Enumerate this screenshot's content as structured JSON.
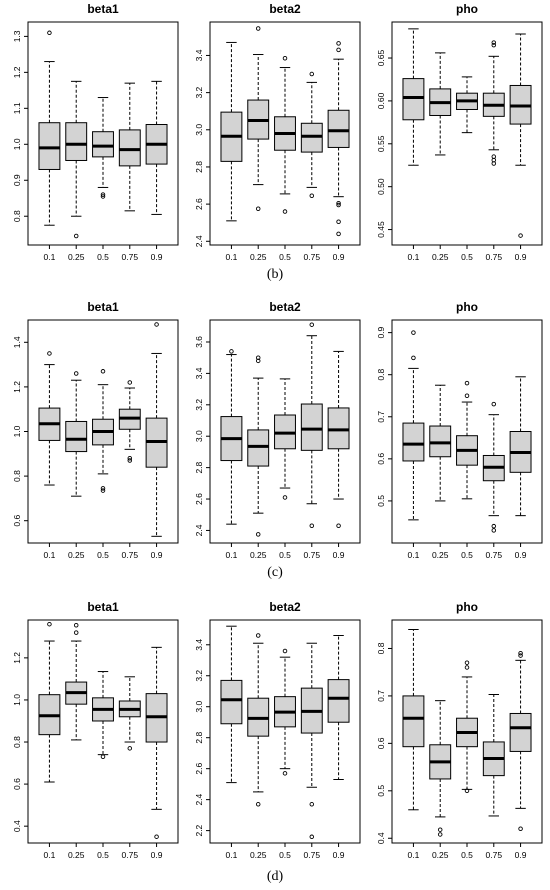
{
  "captions": [
    "(b)",
    "(c)",
    "(d)"
  ],
  "chart_data": [
    {
      "type": "boxplot",
      "title": "beta1",
      "row_caption": "(b)",
      "categories": [
        "0.1",
        "0.25",
        "0.5",
        "0.75",
        "0.9"
      ],
      "ylim": [
        0.72,
        1.34
      ],
      "yticks": [
        0.8,
        0.9,
        1.0,
        1.1,
        1.2,
        1.3
      ],
      "yticklabels": [
        "0.8",
        "0.9",
        "1.0",
        "1.1",
        "1.2",
        "1.3"
      ],
      "boxes": [
        {
          "low": 0.775,
          "q1": 0.93,
          "median": 0.99,
          "q3": 1.06,
          "high": 1.23,
          "outliers": [
            1.31
          ]
        },
        {
          "low": 0.8,
          "q1": 0.955,
          "median": 1.0,
          "q3": 1.06,
          "high": 1.175,
          "outliers": [
            0.745
          ]
        },
        {
          "low": 0.88,
          "q1": 0.965,
          "median": 0.995,
          "q3": 1.035,
          "high": 1.13,
          "outliers": [
            0.86,
            0.855
          ]
        },
        {
          "low": 0.815,
          "q1": 0.94,
          "median": 0.985,
          "q3": 1.04,
          "high": 1.17,
          "outliers": []
        },
        {
          "low": 0.805,
          "q1": 0.945,
          "median": 1.0,
          "q3": 1.055,
          "high": 1.175,
          "outliers": []
        }
      ]
    },
    {
      "type": "boxplot",
      "title": "beta2",
      "row_caption": "(b)",
      "categories": [
        "0.1",
        "0.25",
        "0.5",
        "0.75",
        "0.9"
      ],
      "ylim": [
        2.38,
        3.58
      ],
      "yticks": [
        2.4,
        2.6,
        2.8,
        3.0,
        3.2,
        3.4
      ],
      "yticklabels": [
        "2.4",
        "2.6",
        "2.8",
        "3.0",
        "3.2",
        "3.4"
      ],
      "boxes": [
        {
          "low": 2.51,
          "q1": 2.83,
          "median": 2.965,
          "q3": 3.095,
          "high": 3.47,
          "outliers": []
        },
        {
          "low": 2.705,
          "q1": 2.95,
          "median": 3.05,
          "q3": 3.16,
          "high": 3.405,
          "outliers": [
            3.545,
            2.575
          ]
        },
        {
          "low": 2.655,
          "q1": 2.89,
          "median": 2.98,
          "q3": 3.07,
          "high": 3.335,
          "outliers": [
            3.385,
            2.56
          ]
        },
        {
          "low": 2.69,
          "q1": 2.88,
          "median": 2.965,
          "q3": 3.035,
          "high": 3.255,
          "outliers": [
            3.3,
            2.645
          ]
        },
        {
          "low": 2.64,
          "q1": 2.905,
          "median": 2.995,
          "q3": 3.105,
          "high": 3.38,
          "outliers": [
            3.465,
            3.43,
            2.605,
            2.595,
            2.505,
            2.44
          ]
        }
      ]
    },
    {
      "type": "boxplot",
      "title": "pho",
      "row_caption": "(b)",
      "categories": [
        "0.1",
        "0.25",
        "0.5",
        "0.75",
        "0.9"
      ],
      "ylim": [
        0.432,
        0.692
      ],
      "yticks": [
        0.45,
        0.5,
        0.55,
        0.6,
        0.65
      ],
      "yticklabels": [
        "0.45",
        "0.50",
        "0.55",
        "0.60",
        "0.65"
      ],
      "boxes": [
        {
          "low": 0.525,
          "q1": 0.578,
          "median": 0.604,
          "q3": 0.626,
          "high": 0.684,
          "outliers": []
        },
        {
          "low": 0.537,
          "q1": 0.583,
          "median": 0.598,
          "q3": 0.614,
          "high": 0.656,
          "outliers": []
        },
        {
          "low": 0.563,
          "q1": 0.59,
          "median": 0.6,
          "q3": 0.609,
          "high": 0.628,
          "outliers": []
        },
        {
          "low": 0.543,
          "q1": 0.582,
          "median": 0.595,
          "q3": 0.609,
          "high": 0.652,
          "outliers": [
            0.668,
            0.665,
            0.535,
            0.531,
            0.527
          ]
        },
        {
          "low": 0.525,
          "q1": 0.573,
          "median": 0.594,
          "q3": 0.618,
          "high": 0.678,
          "outliers": [
            0.443
          ]
        }
      ]
    },
    {
      "type": "boxplot",
      "title": "beta1",
      "row_caption": "(c)",
      "categories": [
        "0.1",
        "0.25",
        "0.5",
        "0.75",
        "0.9"
      ],
      "ylim": [
        0.5,
        1.5
      ],
      "yticks": [
        0.6,
        0.8,
        1.0,
        1.2,
        1.4
      ],
      "yticklabels": [
        "0.6",
        "0.8",
        "1.0",
        "1.2",
        "1.4"
      ],
      "boxes": [
        {
          "low": 0.76,
          "q1": 0.96,
          "median": 1.035,
          "q3": 1.105,
          "high": 1.3,
          "outliers": [
            1.35
          ]
        },
        {
          "low": 0.71,
          "q1": 0.91,
          "median": 0.965,
          "q3": 1.045,
          "high": 1.23,
          "outliers": [
            1.26
          ]
        },
        {
          "low": 0.81,
          "q1": 0.94,
          "median": 1.0,
          "q3": 1.055,
          "high": 1.21,
          "outliers": [
            1.27,
            0.745,
            0.735
          ]
        },
        {
          "low": 0.92,
          "q1": 1.01,
          "median": 1.06,
          "q3": 1.1,
          "high": 1.195,
          "outliers": [
            1.22,
            0.88,
            0.87
          ]
        },
        {
          "low": 0.53,
          "q1": 0.84,
          "median": 0.955,
          "q3": 1.06,
          "high": 1.35,
          "outliers": [
            1.48
          ]
        }
      ]
    },
    {
      "type": "boxplot",
      "title": "beta2",
      "row_caption": "(c)",
      "categories": [
        "0.1",
        "0.25",
        "0.5",
        "0.75",
        "0.9"
      ],
      "ylim": [
        2.32,
        3.74
      ],
      "yticks": [
        2.4,
        2.6,
        2.8,
        3.0,
        3.2,
        3.4,
        3.6
      ],
      "yticklabels": [
        "2.4",
        "2.6",
        "2.8",
        "3.0",
        "3.2",
        "3.4",
        "3.6"
      ],
      "boxes": [
        {
          "low": 2.44,
          "q1": 2.845,
          "median": 2.985,
          "q3": 3.125,
          "high": 3.52,
          "outliers": [
            3.54
          ]
        },
        {
          "low": 2.51,
          "q1": 2.81,
          "median": 2.935,
          "q3": 3.04,
          "high": 3.37,
          "outliers": [
            3.5,
            3.48,
            2.375
          ]
        },
        {
          "low": 2.67,
          "q1": 2.92,
          "median": 3.02,
          "q3": 3.135,
          "high": 3.365,
          "outliers": [
            2.61
          ]
        },
        {
          "low": 2.57,
          "q1": 2.91,
          "median": 3.045,
          "q3": 3.205,
          "high": 3.64,
          "outliers": [
            3.71,
            2.43
          ]
        },
        {
          "low": 2.6,
          "q1": 2.92,
          "median": 3.04,
          "q3": 3.18,
          "high": 3.54,
          "outliers": [
            2.43
          ]
        }
      ]
    },
    {
      "type": "boxplot",
      "title": "pho",
      "row_caption": "(c)",
      "categories": [
        "0.1",
        "0.25",
        "0.5",
        "0.75",
        "0.9"
      ],
      "ylim": [
        0.4,
        0.93
      ],
      "yticks": [
        0.5,
        0.6,
        0.7,
        0.8,
        0.9
      ],
      "yticklabels": [
        "0.5",
        "0.6",
        "0.7",
        "0.8",
        "0.9"
      ],
      "boxes": [
        {
          "low": 0.455,
          "q1": 0.595,
          "median": 0.635,
          "q3": 0.685,
          "high": 0.815,
          "outliers": [
            0.9,
            0.84
          ]
        },
        {
          "low": 0.5,
          "q1": 0.605,
          "median": 0.638,
          "q3": 0.678,
          "high": 0.775,
          "outliers": []
        },
        {
          "low": 0.505,
          "q1": 0.585,
          "median": 0.62,
          "q3": 0.655,
          "high": 0.735,
          "outliers": [
            0.78,
            0.75
          ]
        },
        {
          "low": 0.465,
          "q1": 0.548,
          "median": 0.58,
          "q3": 0.608,
          "high": 0.705,
          "outliers": [
            0.73,
            0.44,
            0.43
          ]
        },
        {
          "low": 0.465,
          "q1": 0.568,
          "median": 0.615,
          "q3": 0.665,
          "high": 0.795,
          "outliers": []
        }
      ]
    },
    {
      "type": "boxplot",
      "title": "beta1",
      "row_caption": "(d)",
      "categories": [
        "0.1",
        "0.25",
        "0.5",
        "0.75",
        "0.9"
      ],
      "ylim": [
        0.32,
        1.38
      ],
      "yticks": [
        0.4,
        0.6,
        0.8,
        1.0,
        1.2
      ],
      "yticklabels": [
        "0.4",
        "0.6",
        "0.8",
        "1.0",
        "1.2"
      ],
      "boxes": [
        {
          "low": 0.61,
          "q1": 0.835,
          "median": 0.925,
          "q3": 1.025,
          "high": 1.28,
          "outliers": [
            1.36
          ]
        },
        {
          "low": 0.81,
          "q1": 0.98,
          "median": 1.035,
          "q3": 1.085,
          "high": 1.28,
          "outliers": [
            1.355,
            1.32
          ]
        },
        {
          "low": 0.74,
          "q1": 0.9,
          "median": 0.955,
          "q3": 1.01,
          "high": 1.135,
          "outliers": [
            0.73
          ]
        },
        {
          "low": 0.8,
          "q1": 0.92,
          "median": 0.955,
          "q3": 0.995,
          "high": 1.11,
          "outliers": [
            0.77
          ]
        },
        {
          "low": 0.48,
          "q1": 0.8,
          "median": 0.92,
          "q3": 1.03,
          "high": 1.25,
          "outliers": [
            0.35
          ]
        }
      ]
    },
    {
      "type": "boxplot",
      "title": "beta2",
      "row_caption": "(d)",
      "categories": [
        "0.1",
        "0.25",
        "0.5",
        "0.75",
        "0.9"
      ],
      "ylim": [
        2.12,
        3.56
      ],
      "yticks": [
        2.2,
        2.4,
        2.6,
        2.8,
        3.0,
        3.2,
        3.4
      ],
      "yticklabels": [
        "2.2",
        "2.4",
        "2.6",
        "2.8",
        "3.0",
        "3.2",
        "3.4"
      ],
      "boxes": [
        {
          "low": 2.51,
          "q1": 2.89,
          "median": 3.045,
          "q3": 3.17,
          "high": 3.52,
          "outliers": []
        },
        {
          "low": 2.45,
          "q1": 2.81,
          "median": 2.925,
          "q3": 3.055,
          "high": 3.41,
          "outliers": [
            3.46,
            2.37
          ]
        },
        {
          "low": 2.6,
          "q1": 2.87,
          "median": 2.965,
          "q3": 3.065,
          "high": 3.32,
          "outliers": [
            3.36,
            2.57
          ]
        },
        {
          "low": 2.48,
          "q1": 2.83,
          "median": 2.97,
          "q3": 3.12,
          "high": 3.41,
          "outliers": [
            2.37,
            2.16
          ]
        },
        {
          "low": 2.53,
          "q1": 2.9,
          "median": 3.055,
          "q3": 3.175,
          "high": 3.46,
          "outliers": []
        }
      ]
    },
    {
      "type": "boxplot",
      "title": "pho",
      "row_caption": "(d)",
      "categories": [
        "0.1",
        "0.25",
        "0.5",
        "0.75",
        "0.9"
      ],
      "ylim": [
        0.39,
        0.86
      ],
      "yticks": [
        0.4,
        0.5,
        0.6,
        0.7,
        0.8
      ],
      "yticklabels": [
        "0.4",
        "0.5",
        "0.6",
        "0.7",
        "0.8"
      ],
      "boxes": [
        {
          "low": 0.46,
          "q1": 0.593,
          "median": 0.653,
          "q3": 0.7,
          "high": 0.84,
          "outliers": []
        },
        {
          "low": 0.445,
          "q1": 0.525,
          "median": 0.561,
          "q3": 0.597,
          "high": 0.69,
          "outliers": [
            0.418,
            0.408
          ]
        },
        {
          "low": 0.503,
          "q1": 0.593,
          "median": 0.623,
          "q3": 0.653,
          "high": 0.74,
          "outliers": [
            0.77,
            0.76,
            0.5
          ]
        },
        {
          "low": 0.447,
          "q1": 0.532,
          "median": 0.568,
          "q3": 0.603,
          "high": 0.703,
          "outliers": []
        },
        {
          "low": 0.463,
          "q1": 0.583,
          "median": 0.633,
          "q3": 0.663,
          "high": 0.775,
          "outliers": [
            0.79,
            0.785,
            0.42
          ]
        }
      ]
    }
  ]
}
